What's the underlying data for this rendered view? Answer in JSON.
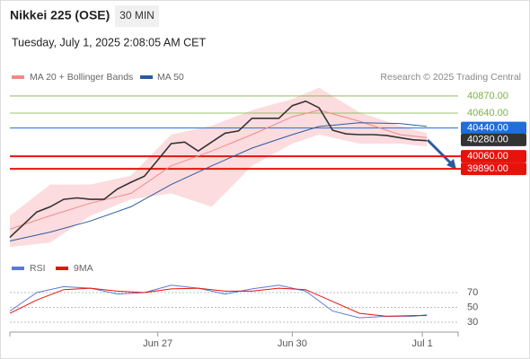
{
  "header": {
    "title": "Nikkei 225 (OSE)",
    "interval": "30 MIN",
    "timestamp": "Tuesday, July 1, 2025 2:08:05 AM CET",
    "credit": "Research © 2025 Trading Central"
  },
  "chart_data": [
    {
      "type": "line",
      "xlim": [
        0,
        100
      ],
      "ylim": [
        38830,
        40990
      ],
      "xticks": [
        {
          "value": 33,
          "label": "Jun 27"
        },
        {
          "value": 63,
          "label": "Jun 30"
        },
        {
          "value": 92,
          "label": "Jul 1"
        }
      ],
      "price": {
        "color": "#333333",
        "x": [
          0,
          3,
          6,
          9,
          12,
          15,
          18,
          21,
          24,
          27,
          30,
          33,
          36,
          39,
          42,
          45,
          48,
          51,
          54,
          57,
          60,
          63,
          66,
          69,
          72,
          75,
          78,
          81,
          84,
          87,
          90,
          93
        ],
        "values": [
          38970,
          39140,
          39310,
          39380,
          39480,
          39500,
          39480,
          39480,
          39620,
          39710,
          39790,
          40010,
          40230,
          40250,
          40130,
          40250,
          40370,
          40400,
          40570,
          40570,
          40570,
          40740,
          40800,
          40710,
          40410,
          40360,
          40350,
          40350,
          40340,
          40310,
          40280,
          40270
        ]
      },
      "series": [
        {
          "name": "MA 20 + Bollinger Bands",
          "color": "#f08a8a",
          "band_color": "#fbd3d6",
          "x": [
            0,
            9,
            18,
            27,
            36,
            45,
            54,
            63,
            69,
            78,
            87,
            93
          ],
          "values": [
            39080,
            39260,
            39430,
            39560,
            39930,
            40130,
            40350,
            40590,
            40680,
            40530,
            40350,
            40310
          ],
          "upper": [
            39260,
            39680,
            39680,
            39800,
            40350,
            40470,
            40680,
            40830,
            40980,
            40650,
            40470,
            40370
          ],
          "lower": [
            38840,
            38900,
            39260,
            39480,
            39560,
            39380,
            39930,
            40230,
            40350,
            40230,
            40230,
            40190
          ]
        },
        {
          "name": "MA 50",
          "color": "#2c5aa0",
          "x": [
            0,
            9,
            18,
            27,
            36,
            45,
            54,
            63,
            69,
            78,
            87,
            93
          ],
          "values": [
            38920,
            39040,
            39190,
            39380,
            39680,
            39930,
            40170,
            40350,
            40460,
            40510,
            40500,
            40460
          ]
        }
      ],
      "levels": [
        {
          "value": 40870,
          "label": "40870.00",
          "color": "#7cb342",
          "box": false,
          "width": 0.8
        },
        {
          "value": 40640,
          "label": "40640.00",
          "color": "#7cb342",
          "box": false,
          "width": 0.8
        },
        {
          "value": 40440,
          "label": "40440.00",
          "color": "#1e6fd9",
          "box": true,
          "width": 1
        },
        {
          "value": 40280,
          "label": "40280.00",
          "color": "#333333",
          "box": true,
          "width": 0
        },
        {
          "value": 40060,
          "label": "40060.00",
          "color": "#e8120c",
          "box": true,
          "width": 2
        },
        {
          "value": 39890,
          "label": "39890.00",
          "color": "#e8120c",
          "box": true,
          "width": 2
        }
      ]
    },
    {
      "type": "line",
      "xlim": [
        0,
        100
      ],
      "ylim": [
        20,
        90
      ],
      "yticks": [
        30,
        50,
        70
      ],
      "grid": true,
      "series": [
        {
          "name": "RSI",
          "color": "#5b7bd5",
          "x": [
            0,
            6,
            12,
            18,
            24,
            30,
            36,
            42,
            48,
            54,
            60,
            66,
            72,
            78,
            84,
            90,
            93
          ],
          "values": [
            45,
            70,
            78,
            76,
            68,
            70,
            80,
            76,
            68,
            75,
            80,
            72,
            45,
            36,
            38,
            38,
            40
          ]
        },
        {
          "name": "9MA",
          "color": "#e8120c",
          "x": [
            0,
            6,
            12,
            18,
            24,
            30,
            36,
            42,
            48,
            54,
            60,
            66,
            72,
            78,
            84,
            90,
            93
          ],
          "values": [
            42,
            60,
            74,
            76,
            72,
            70,
            75,
            76,
            72,
            72,
            76,
            74,
            58,
            42,
            38,
            39,
            39
          ]
        }
      ]
    }
  ]
}
